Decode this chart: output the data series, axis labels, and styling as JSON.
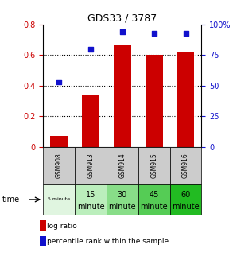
{
  "title": "GDS33 / 3787",
  "samples": [
    "GSM908",
    "GSM913",
    "GSM914",
    "GSM915",
    "GSM916"
  ],
  "time_labels_line1": [
    "5 minute",
    "15",
    "30",
    "45",
    "60"
  ],
  "time_labels_line2": [
    "",
    "minute",
    "minute",
    "minute",
    "minute"
  ],
  "log_ratio": [
    0.07,
    0.34,
    0.665,
    0.6,
    0.625
  ],
  "percentile_rank_scaled": [
    0.425,
    0.64,
    0.755,
    0.745,
    0.745
  ],
  "bar_color": "#cc0000",
  "dot_color": "#1111cc",
  "ylim_left": [
    0,
    0.8
  ],
  "ylim_right": [
    0,
    100
  ],
  "yticks_left": [
    0,
    0.2,
    0.4,
    0.6,
    0.8
  ],
  "ytick_labels_left": [
    "0",
    "0.2",
    "0.4",
    "0.6",
    "0.8"
  ],
  "yticks_right": [
    0,
    25,
    50,
    75,
    100
  ],
  "ytick_labels_right": [
    "0",
    "25",
    "50",
    "75",
    "100%"
  ],
  "time_row_colors": [
    "#e0f5e0",
    "#bbeebc",
    "#88dd88",
    "#55cc55",
    "#22bb22"
  ],
  "gsm_row_color": "#cccccc",
  "legend_log_ratio": "log ratio",
  "legend_percentile": "percentile rank within the sample",
  "time_label": "time"
}
